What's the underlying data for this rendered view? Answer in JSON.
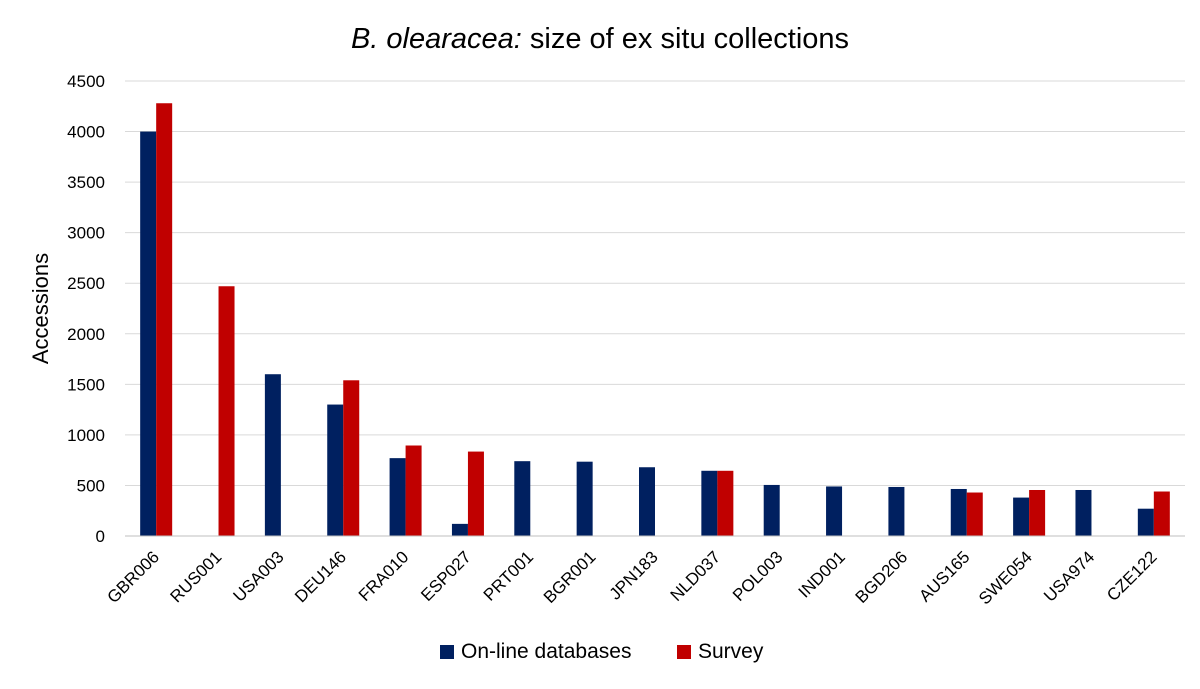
{
  "chart_data": {
    "type": "bar",
    "title_italic": "B. olearacea:",
    "title_rest": " size of ex situ collections",
    "xlabel": "",
    "ylabel": "Accessions",
    "ylim": [
      0,
      4500
    ],
    "yticks": [
      0,
      500,
      1000,
      1500,
      2000,
      2500,
      3000,
      3500,
      4000,
      4500
    ],
    "grid": true,
    "legend_position": "bottom",
    "categories": [
      "GBR006",
      "RUS001",
      "USA003",
      "DEU146",
      "FRA010",
      "ESP027",
      "PRT001",
      "BGR001",
      "JPN183",
      "NLD037",
      "POL003",
      "IND001",
      "BGD206",
      "AUS165",
      "SWE054",
      "USA974",
      "CZE122"
    ],
    "series": [
      {
        "name": "On-line databases",
        "color": "#002060",
        "values": [
          4000,
          null,
          1600,
          1300,
          770,
          120,
          740,
          735,
          680,
          645,
          505,
          490,
          485,
          465,
          380,
          455,
          270
        ]
      },
      {
        "name": "Survey",
        "color": "#c00000",
        "values": [
          4280,
          2470,
          null,
          1540,
          895,
          835,
          null,
          null,
          null,
          645,
          null,
          null,
          null,
          430,
          455,
          null,
          440
        ]
      }
    ]
  }
}
